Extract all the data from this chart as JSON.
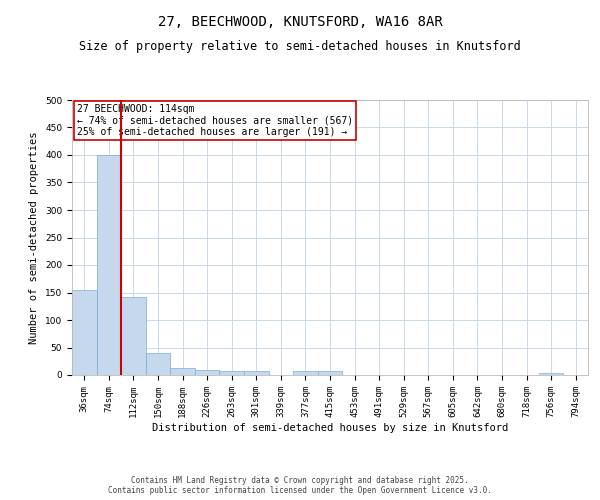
{
  "title_line1": "27, BEECHWOOD, KNUTSFORD, WA16 8AR",
  "title_line2": "Size of property relative to semi-detached houses in Knutsford",
  "xlabel": "Distribution of semi-detached houses by size in Knutsford",
  "ylabel": "Number of semi-detached properties",
  "categories": [
    "36sqm",
    "74sqm",
    "112sqm",
    "150sqm",
    "188sqm",
    "226sqm",
    "263sqm",
    "301sqm",
    "339sqm",
    "377sqm",
    "415sqm",
    "453sqm",
    "491sqm",
    "529sqm",
    "567sqm",
    "605sqm",
    "642sqm",
    "680sqm",
    "718sqm",
    "756sqm",
    "794sqm"
  ],
  "bar_heights": [
    155,
    400,
    142,
    40,
    12,
    10,
    8,
    8,
    0,
    7,
    7,
    0,
    0,
    0,
    0,
    0,
    0,
    0,
    0,
    3,
    0
  ],
  "bar_color": "#c5d8ed",
  "bar_edge_color": "#7aafd4",
  "vline_color": "#cc0000",
  "vline_x_index": 2,
  "annotation_title": "27 BEECHWOOD: 114sqm",
  "annotation_line2": "← 74% of semi-detached houses are smaller (567)",
  "annotation_line3": "25% of semi-detached houses are larger (191) →",
  "annotation_box_color": "#cc0000",
  "ylim": [
    0,
    500
  ],
  "yticks": [
    0,
    50,
    100,
    150,
    200,
    250,
    300,
    350,
    400,
    450,
    500
  ],
  "background_color": "#ffffff",
  "grid_color": "#c8d8ea",
  "footer_line1": "Contains HM Land Registry data © Crown copyright and database right 2025.",
  "footer_line2": "Contains public sector information licensed under the Open Government Licence v3.0.",
  "title_fontsize": 10,
  "subtitle_fontsize": 8.5,
  "axis_label_fontsize": 7.5,
  "tick_fontsize": 6.5,
  "annotation_fontsize": 7,
  "footer_fontsize": 5.5
}
